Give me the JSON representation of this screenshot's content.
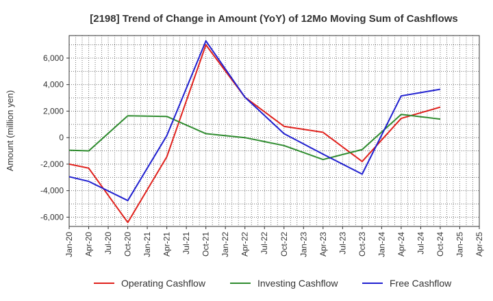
{
  "chart_data": {
    "type": "line",
    "title": "[2198]  Trend of Change in Amount (YoY) of 12Mo Moving Sum of Cashflows",
    "xlabel": "",
    "ylabel": "Amount (million yen)",
    "ylim": [
      -6700,
      7700
    ],
    "yticks": [
      -6000,
      -4000,
      -2000,
      0,
      2000,
      4000,
      6000
    ],
    "ytick_labels": [
      "-6,000",
      "-4,000",
      "-2,000",
      "0",
      "2,000",
      "4,000",
      "6,000"
    ],
    "x_tick_labels": [
      "Jan-20",
      "Apr-20",
      "Jul-20",
      "Oct-20",
      "Jan-21",
      "Apr-21",
      "Jul-21",
      "Oct-21",
      "Jan-22",
      "Apr-22",
      "Jul-22",
      "Oct-22",
      "Jan-23",
      "Apr-23",
      "Jul-23",
      "Oct-23",
      "Jan-24",
      "Apr-24",
      "Jul-24",
      "Oct-24",
      "Jan-25",
      "Apr-25"
    ],
    "grid": true,
    "legend_position": "bottom",
    "series": [
      {
        "name": "Operating Cashflow",
        "color": "#e0201b",
        "points": [
          {
            "x": "Jan-20",
            "y": -2000
          },
          {
            "x": "Apr-20",
            "y": -2300
          },
          {
            "x": "Oct-20",
            "y": -6400
          },
          {
            "x": "Apr-21",
            "y": -1450
          },
          {
            "x": "Oct-21",
            "y": 7000
          },
          {
            "x": "Apr-22",
            "y": 3050
          },
          {
            "x": "Oct-22",
            "y": 850
          },
          {
            "x": "Apr-23",
            "y": 400
          },
          {
            "x": "Oct-23",
            "y": -1800
          },
          {
            "x": "Apr-24",
            "y": 1450
          },
          {
            "x": "Oct-24",
            "y": 2300
          }
        ]
      },
      {
        "name": "Investing Cashflow",
        "color": "#2e8b2e",
        "points": [
          {
            "x": "Jan-20",
            "y": -950
          },
          {
            "x": "Apr-20",
            "y": -1000
          },
          {
            "x": "Oct-20",
            "y": 1650
          },
          {
            "x": "Apr-21",
            "y": 1600
          },
          {
            "x": "Oct-21",
            "y": 300
          },
          {
            "x": "Apr-22",
            "y": 0
          },
          {
            "x": "Oct-22",
            "y": -600
          },
          {
            "x": "Apr-23",
            "y": -1650
          },
          {
            "x": "Oct-23",
            "y": -900
          },
          {
            "x": "Apr-24",
            "y": 1750
          },
          {
            "x": "Oct-24",
            "y": 1400
          }
        ]
      },
      {
        "name": "Free Cashflow",
        "color": "#1f1fd0",
        "points": [
          {
            "x": "Jan-20",
            "y": -2950
          },
          {
            "x": "Apr-20",
            "y": -3300
          },
          {
            "x": "Oct-20",
            "y": -4750
          },
          {
            "x": "Apr-21",
            "y": 150
          },
          {
            "x": "Oct-21",
            "y": 7300
          },
          {
            "x": "Apr-22",
            "y": 3050
          },
          {
            "x": "Oct-22",
            "y": 300
          },
          {
            "x": "Apr-23",
            "y": -1250
          },
          {
            "x": "Oct-23",
            "y": -2750
          },
          {
            "x": "Apr-24",
            "y": 3150
          },
          {
            "x": "Oct-24",
            "y": 3650
          }
        ]
      }
    ]
  }
}
